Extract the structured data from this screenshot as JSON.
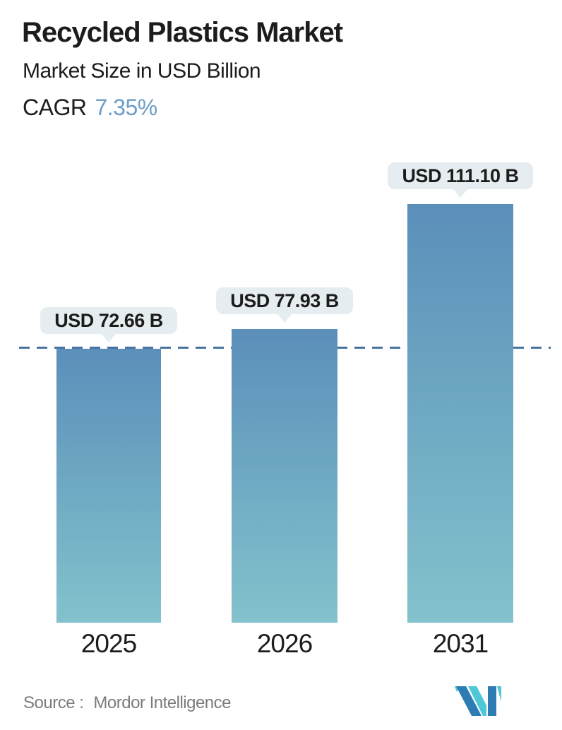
{
  "header": {
    "title": "Recycled Plastics Market",
    "subtitle": "Market Size in USD Billion",
    "cagr_label": "CAGR",
    "cagr_value": "7.35%"
  },
  "footer": {
    "source_label": "Source :",
    "source_value": "Mordor Intelligence",
    "logo_name": "mordor-intelligence-logo"
  },
  "colors": {
    "text_dark": "#1c1c1c",
    "cagr_accent": "#6b9dc6",
    "bar_top": "#5b8fba",
    "bar_bottom": "#83c2cc",
    "dashed_line": "#47759f",
    "callout_bg": "#e6edf0",
    "source_text": "#7c7c7c",
    "logo_blue": "#2d7cb4",
    "logo_teal": "#4ec7d6"
  },
  "chart_data": {
    "type": "bar",
    "title": "Recycled Plastics Market",
    "subtitle": "Market Size in USD Billion",
    "cagr_percent": 7.35,
    "categories": [
      "2025",
      "2026",
      "2031"
    ],
    "values": [
      72.66,
      77.93,
      111.1
    ],
    "labels": [
      "USD 72.66 B",
      "USD 77.93 B",
      "USD 111.10 B"
    ],
    "unit": "USD Billion",
    "xlabel": "",
    "ylabel": "",
    "grid": false,
    "legend": false,
    "reference_line": {
      "style": "dashed",
      "at_value": 72.66
    },
    "bar_gradient": [
      "#5b8fba",
      "#83c2cc"
    ]
  }
}
